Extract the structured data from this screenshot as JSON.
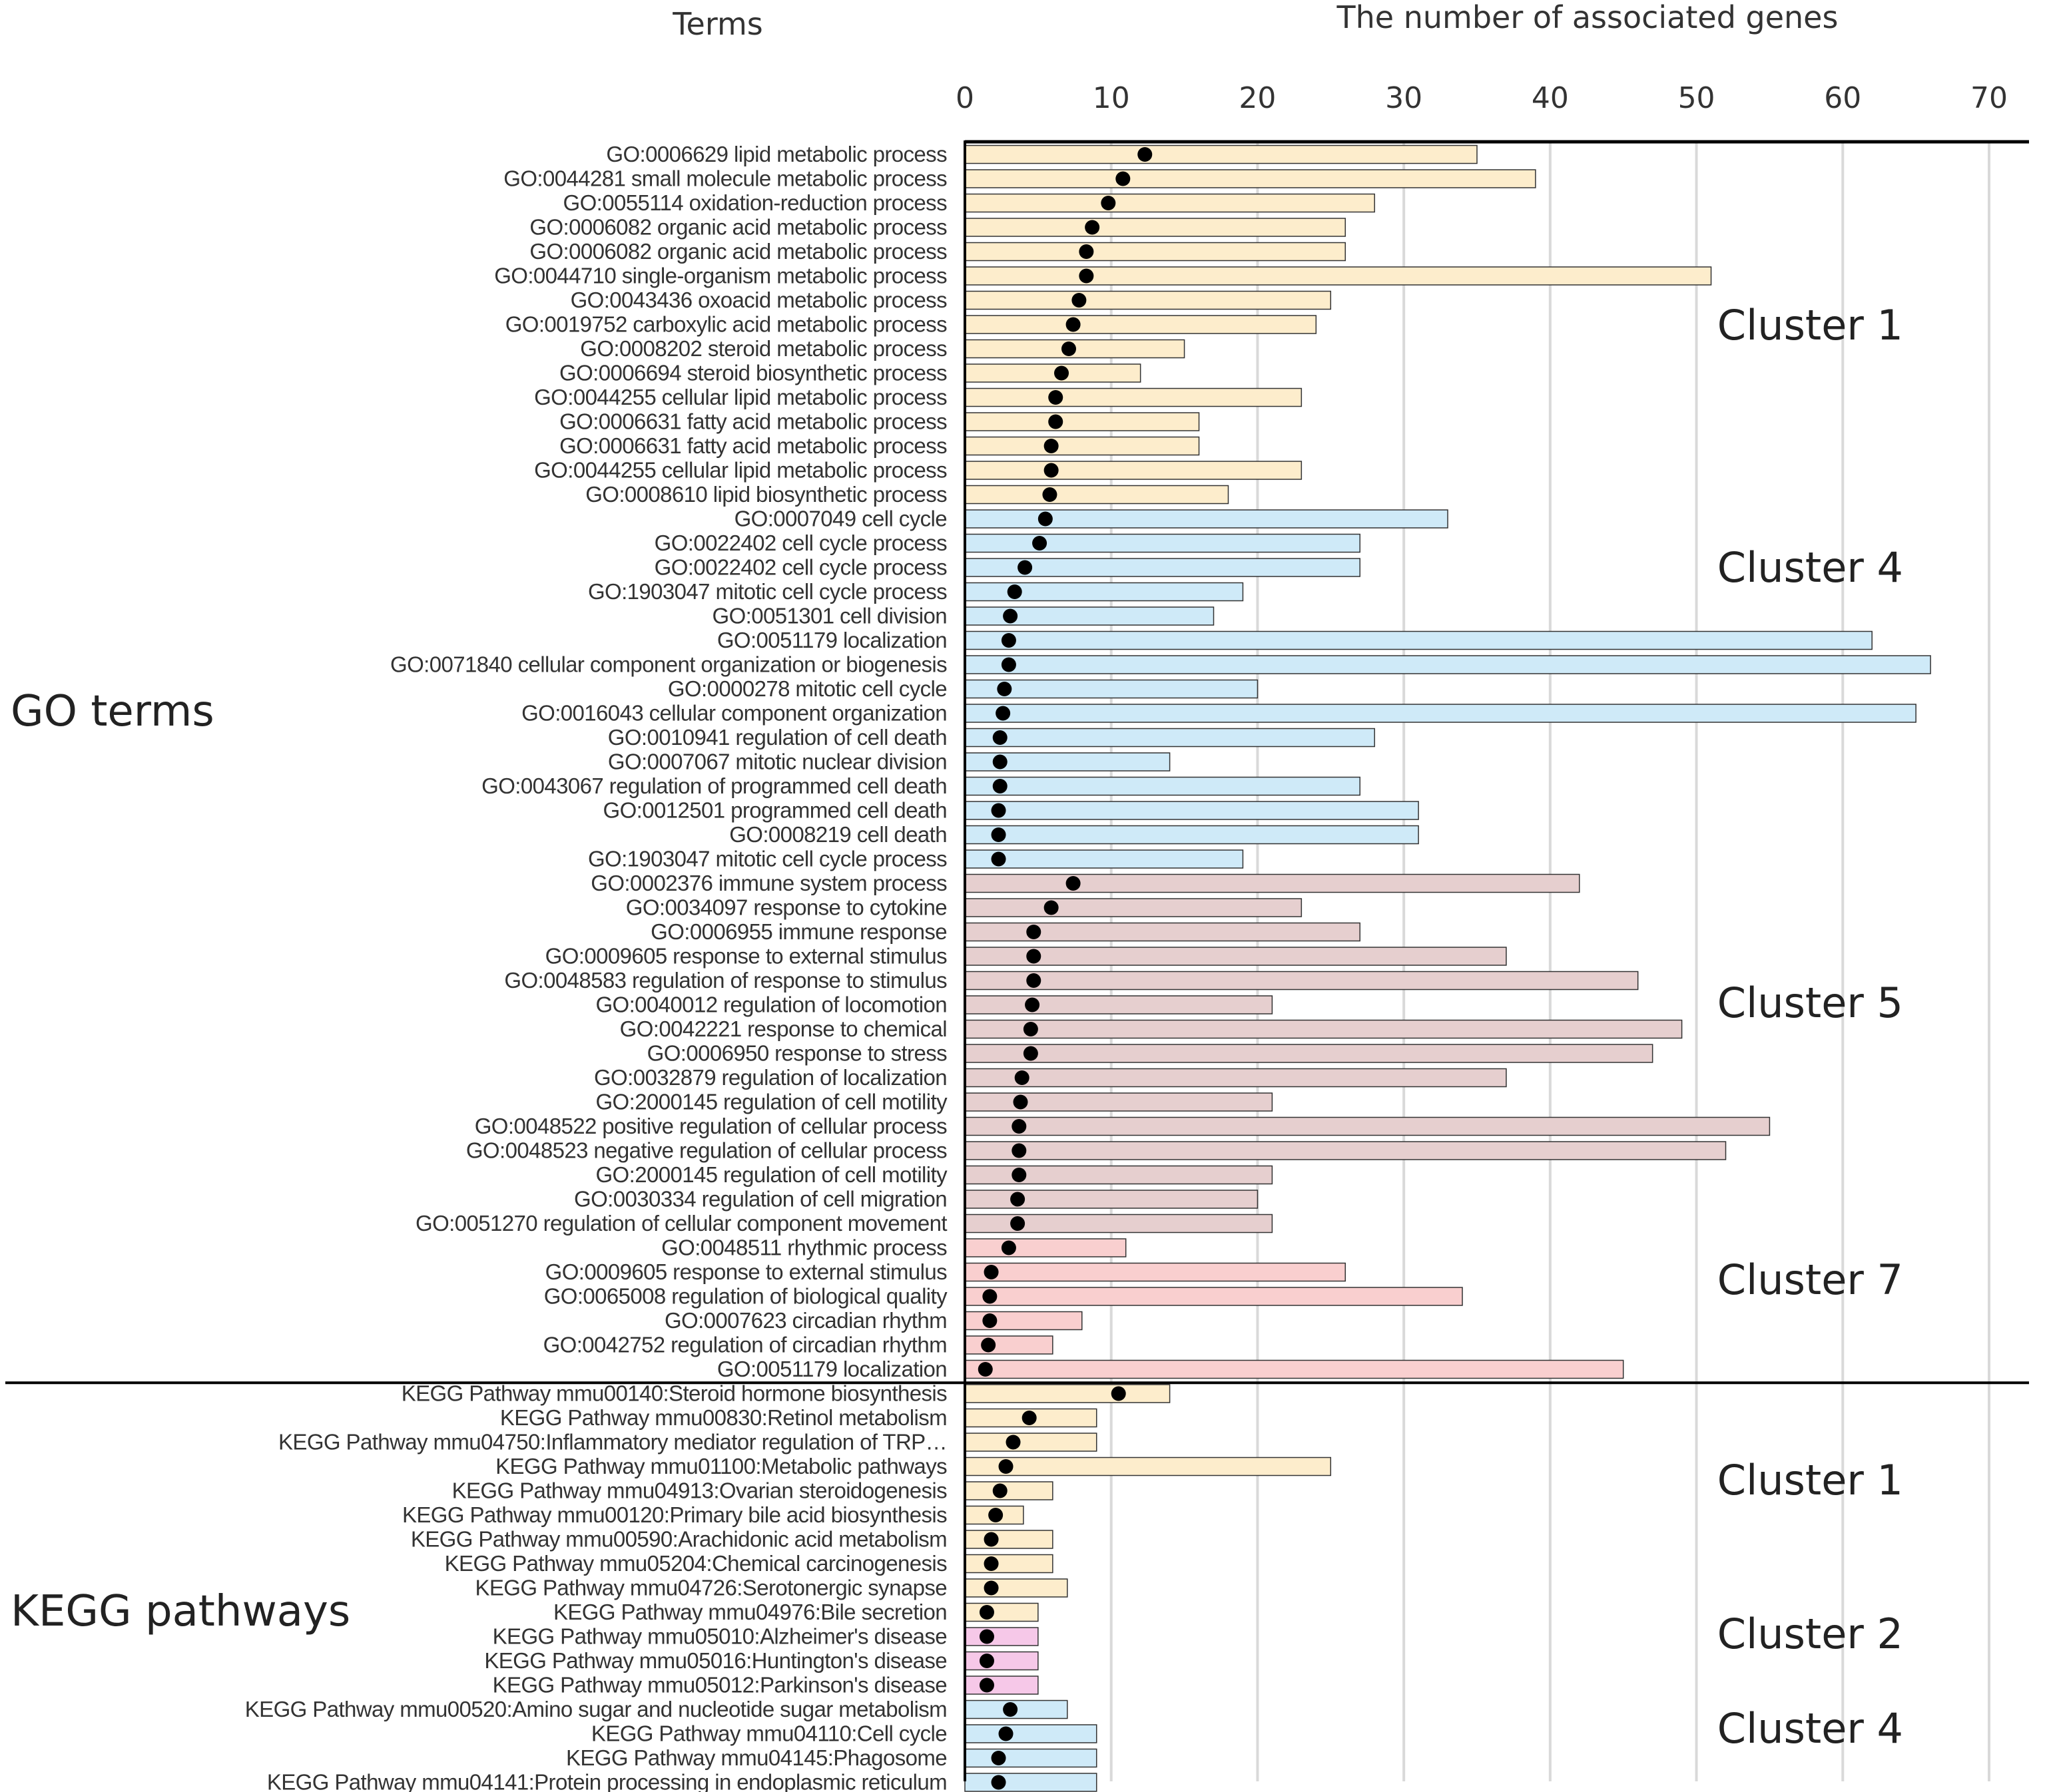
{
  "chart_data": {
    "type": "bar",
    "title": "",
    "headers": {
      "terms": "Terms",
      "value": "The number of associated genes"
    },
    "xlim": [
      0,
      70
    ],
    "xticks": [
      0,
      10,
      20,
      30,
      40,
      50,
      60,
      70
    ],
    "grid": true,
    "series": [
      {
        "name": "Number of associated genes",
        "mark": "bar"
      },
      {
        "name": "Enrichment marker",
        "mark": "dot"
      }
    ],
    "colors": {
      "Cluster 1": "#fdedcc",
      "Cluster 2": "#f6c8e8",
      "Cluster 4": "#cfeaf8",
      "Cluster 5": "#e6cfcf",
      "Cluster 7": "#f9cfcf",
      "bar_stroke": "#333333",
      "dot": "#000000",
      "grid": "#d9d9d9",
      "text": "#333333",
      "title_text": "#222222"
    },
    "sections": [
      {
        "name": "GO terms",
        "clusters": [
          {
            "name": "Cluster 1",
            "rows": [
              {
                "label": "GO:0006629 lipid metabolic process",
                "value": 35,
                "dot": 12.3
              },
              {
                "label": "GO:0044281 small molecule metabolic process",
                "value": 39,
                "dot": 10.8
              },
              {
                "label": "GO:0055114 oxidation-reduction process",
                "value": 28,
                "dot": 9.8
              },
              {
                "label": "GO:0006082 organic acid metabolic process",
                "value": 26,
                "dot": 8.7
              },
              {
                "label": "GO:0006082 organic acid metabolic process",
                "value": 26,
                "dot": 8.3
              },
              {
                "label": "GO:0044710 single-organism metabolic process",
                "value": 51,
                "dot": 8.3
              },
              {
                "label": "GO:0043436 oxoacid metabolic process",
                "value": 25,
                "dot": 7.8
              },
              {
                "label": "GO:0019752 carboxylic acid metabolic process",
                "value": 24,
                "dot": 7.4
              },
              {
                "label": "GO:0008202 steroid metabolic process",
                "value": 15,
                "dot": 7.1
              },
              {
                "label": "GO:0006694 steroid biosynthetic process",
                "value": 12,
                "dot": 6.6
              },
              {
                "label": "GO:0044255 cellular lipid metabolic process",
                "value": 23,
                "dot": 6.2
              },
              {
                "label": "GO:0006631 fatty acid metabolic process",
                "value": 16,
                "dot": 6.2
              },
              {
                "label": "GO:0006631 fatty acid metabolic process",
                "value": 16,
                "dot": 5.9
              },
              {
                "label": "GO:0044255 cellular lipid metabolic process",
                "value": 23,
                "dot": 5.9
              },
              {
                "label": "GO:0008610 lipid biosynthetic process",
                "value": 18,
                "dot": 5.8
              }
            ]
          },
          {
            "name": "Cluster 4",
            "rows": [
              {
                "label": "GO:0007049 cell cycle",
                "value": 33,
                "dot": 5.5
              },
              {
                "label": "GO:0022402 cell cycle process",
                "value": 27,
                "dot": 5.1
              },
              {
                "label": "GO:0022402 cell cycle process",
                "value": 27,
                "dot": 4.1
              },
              {
                "label": "GO:1903047 mitotic cell cycle process",
                "value": 19,
                "dot": 3.4
              },
              {
                "label": "GO:0051301 cell division",
                "value": 17,
                "dot": 3.1
              },
              {
                "label": "GO:0051179 localization",
                "value": 62,
                "dot": 3.0
              },
              {
                "label": "GO:0071840 cellular component organization or biogenesis",
                "value": 66,
                "dot": 3.0
              },
              {
                "label": "GO:0000278 mitotic cell cycle",
                "value": 20,
                "dot": 2.7
              },
              {
                "label": "GO:0016043 cellular component organization",
                "value": 65,
                "dot": 2.6
              },
              {
                "label": "GO:0010941 regulation of cell death",
                "value": 28,
                "dot": 2.4
              },
              {
                "label": "GO:0007067 mitotic nuclear division",
                "value": 14,
                "dot": 2.4
              },
              {
                "label": "GO:0043067 regulation of programmed cell death",
                "value": 27,
                "dot": 2.4
              },
              {
                "label": "GO:0012501 programmed cell death",
                "value": 31,
                "dot": 2.3
              },
              {
                "label": "GO:0008219 cell death",
                "value": 31,
                "dot": 2.3
              },
              {
                "label": "GO:1903047 mitotic cell cycle process",
                "value": 19,
                "dot": 2.3
              }
            ]
          },
          {
            "name": "Cluster 5",
            "rows": [
              {
                "label": "GO:0002376 immune system process",
                "value": 42,
                "dot": 7.4
              },
              {
                "label": "GO:0034097 response to cytokine",
                "value": 23,
                "dot": 5.9
              },
              {
                "label": "GO:0006955 immune response",
                "value": 27,
                "dot": 4.7
              },
              {
                "label": "GO:0009605 response to external stimulus",
                "value": 37,
                "dot": 4.7
              },
              {
                "label": "GO:0048583 regulation of response to stimulus",
                "value": 46,
                "dot": 4.7
              },
              {
                "label": "GO:0040012 regulation of locomotion",
                "value": 21,
                "dot": 4.6
              },
              {
                "label": "GO:0042221 response to chemical",
                "value": 49,
                "dot": 4.5
              },
              {
                "label": "GO:0006950 response to stress",
                "value": 47,
                "dot": 4.5
              },
              {
                "label": "GO:0032879 regulation of localization",
                "value": 37,
                "dot": 3.9
              },
              {
                "label": "GO:2000145 regulation of cell motility",
                "value": 21,
                "dot": 3.8
              },
              {
                "label": "GO:0048522 positive regulation of cellular process",
                "value": 55,
                "dot": 3.7
              },
              {
                "label": "GO:0048523 negative regulation of cellular process",
                "value": 52,
                "dot": 3.7
              },
              {
                "label": "GO:2000145 regulation of cell motility",
                "value": 21,
                "dot": 3.7
              },
              {
                "label": "GO:0030334 regulation of cell migration",
                "value": 20,
                "dot": 3.6
              },
              {
                "label": "GO:0051270 regulation of cellular component movement",
                "value": 21,
                "dot": 3.6
              }
            ]
          },
          {
            "name": "Cluster 7",
            "rows": [
              {
                "label": "GO:0048511 rhythmic process",
                "value": 11,
                "dot": 3.0
              },
              {
                "label": "GO:0009605 response to external stimulus",
                "value": 26,
                "dot": 1.8
              },
              {
                "label": "GO:0065008 regulation of biological quality",
                "value": 34,
                "dot": 1.7
              },
              {
                "label": "GO:0007623 circadian rhythm",
                "value": 8,
                "dot": 1.7
              },
              {
                "label": "GO:0042752 regulation of circadian rhythm",
                "value": 6,
                "dot": 1.6
              },
              {
                "label": "GO:0051179 localization",
                "value": 45,
                "dot": 1.4
              }
            ]
          }
        ]
      },
      {
        "name": "KEGG pathways",
        "clusters": [
          {
            "name": "Cluster 1",
            "rows": [
              {
                "label": "KEGG Pathway mmu00140:Steroid hormone biosynthesis",
                "value": 14,
                "dot": 10.5
              },
              {
                "label": "KEGG Pathway mmu00830:Retinol metabolism",
                "value": 9,
                "dot": 4.4
              },
              {
                "label": "KEGG Pathway mmu04750:Inflammatory mediator regulation of TRP…",
                "value": 9,
                "dot": 3.3
              },
              {
                "label": "KEGG Pathway mmu01100:Metabolic pathways",
                "value": 25,
                "dot": 2.8
              },
              {
                "label": "KEGG Pathway mmu04913:Ovarian steroidogenesis",
                "value": 6,
                "dot": 2.4
              },
              {
                "label": "KEGG Pathway mmu00120:Primary bile acid biosynthesis",
                "value": 4,
                "dot": 2.1
              },
              {
                "label": "KEGG Pathway mmu00590:Arachidonic acid metabolism",
                "value": 6,
                "dot": 1.8
              },
              {
                "label": "KEGG Pathway mmu05204:Chemical carcinogenesis",
                "value": 6,
                "dot": 1.8
              },
              {
                "label": "KEGG Pathway mmu04726:Serotonergic synapse",
                "value": 7,
                "dot": 1.8
              },
              {
                "label": "KEGG Pathway mmu04976:Bile secretion",
                "value": 5,
                "dot": 1.5
              }
            ]
          },
          {
            "name": "Cluster 2",
            "rows": [
              {
                "label": "KEGG Pathway mmu05010:Alzheimer's disease",
                "value": 5,
                "dot": 1.5
              },
              {
                "label": "KEGG Pathway mmu05016:Huntington's disease",
                "value": 5,
                "dot": 1.5
              },
              {
                "label": "KEGG Pathway mmu05012:Parkinson's disease",
                "value": 5,
                "dot": 1.5
              }
            ]
          },
          {
            "name": "Cluster 4",
            "rows": [
              {
                "label": "KEGG Pathway mmu00520:Amino sugar and nucleotide sugar metabolism",
                "value": 7,
                "dot": 3.1
              },
              {
                "label": "KEGG Pathway mmu04110:Cell cycle",
                "value": 9,
                "dot": 2.8
              },
              {
                "label": "KEGG Pathway mmu04145:Phagosome",
                "value": 9,
                "dot": 2.3
              },
              {
                "label": "KEGG Pathway mmu04141:Protein processing in endoplasmic reticulum",
                "value": 9,
                "dot": 2.3
              }
            ]
          }
        ]
      }
    ]
  }
}
